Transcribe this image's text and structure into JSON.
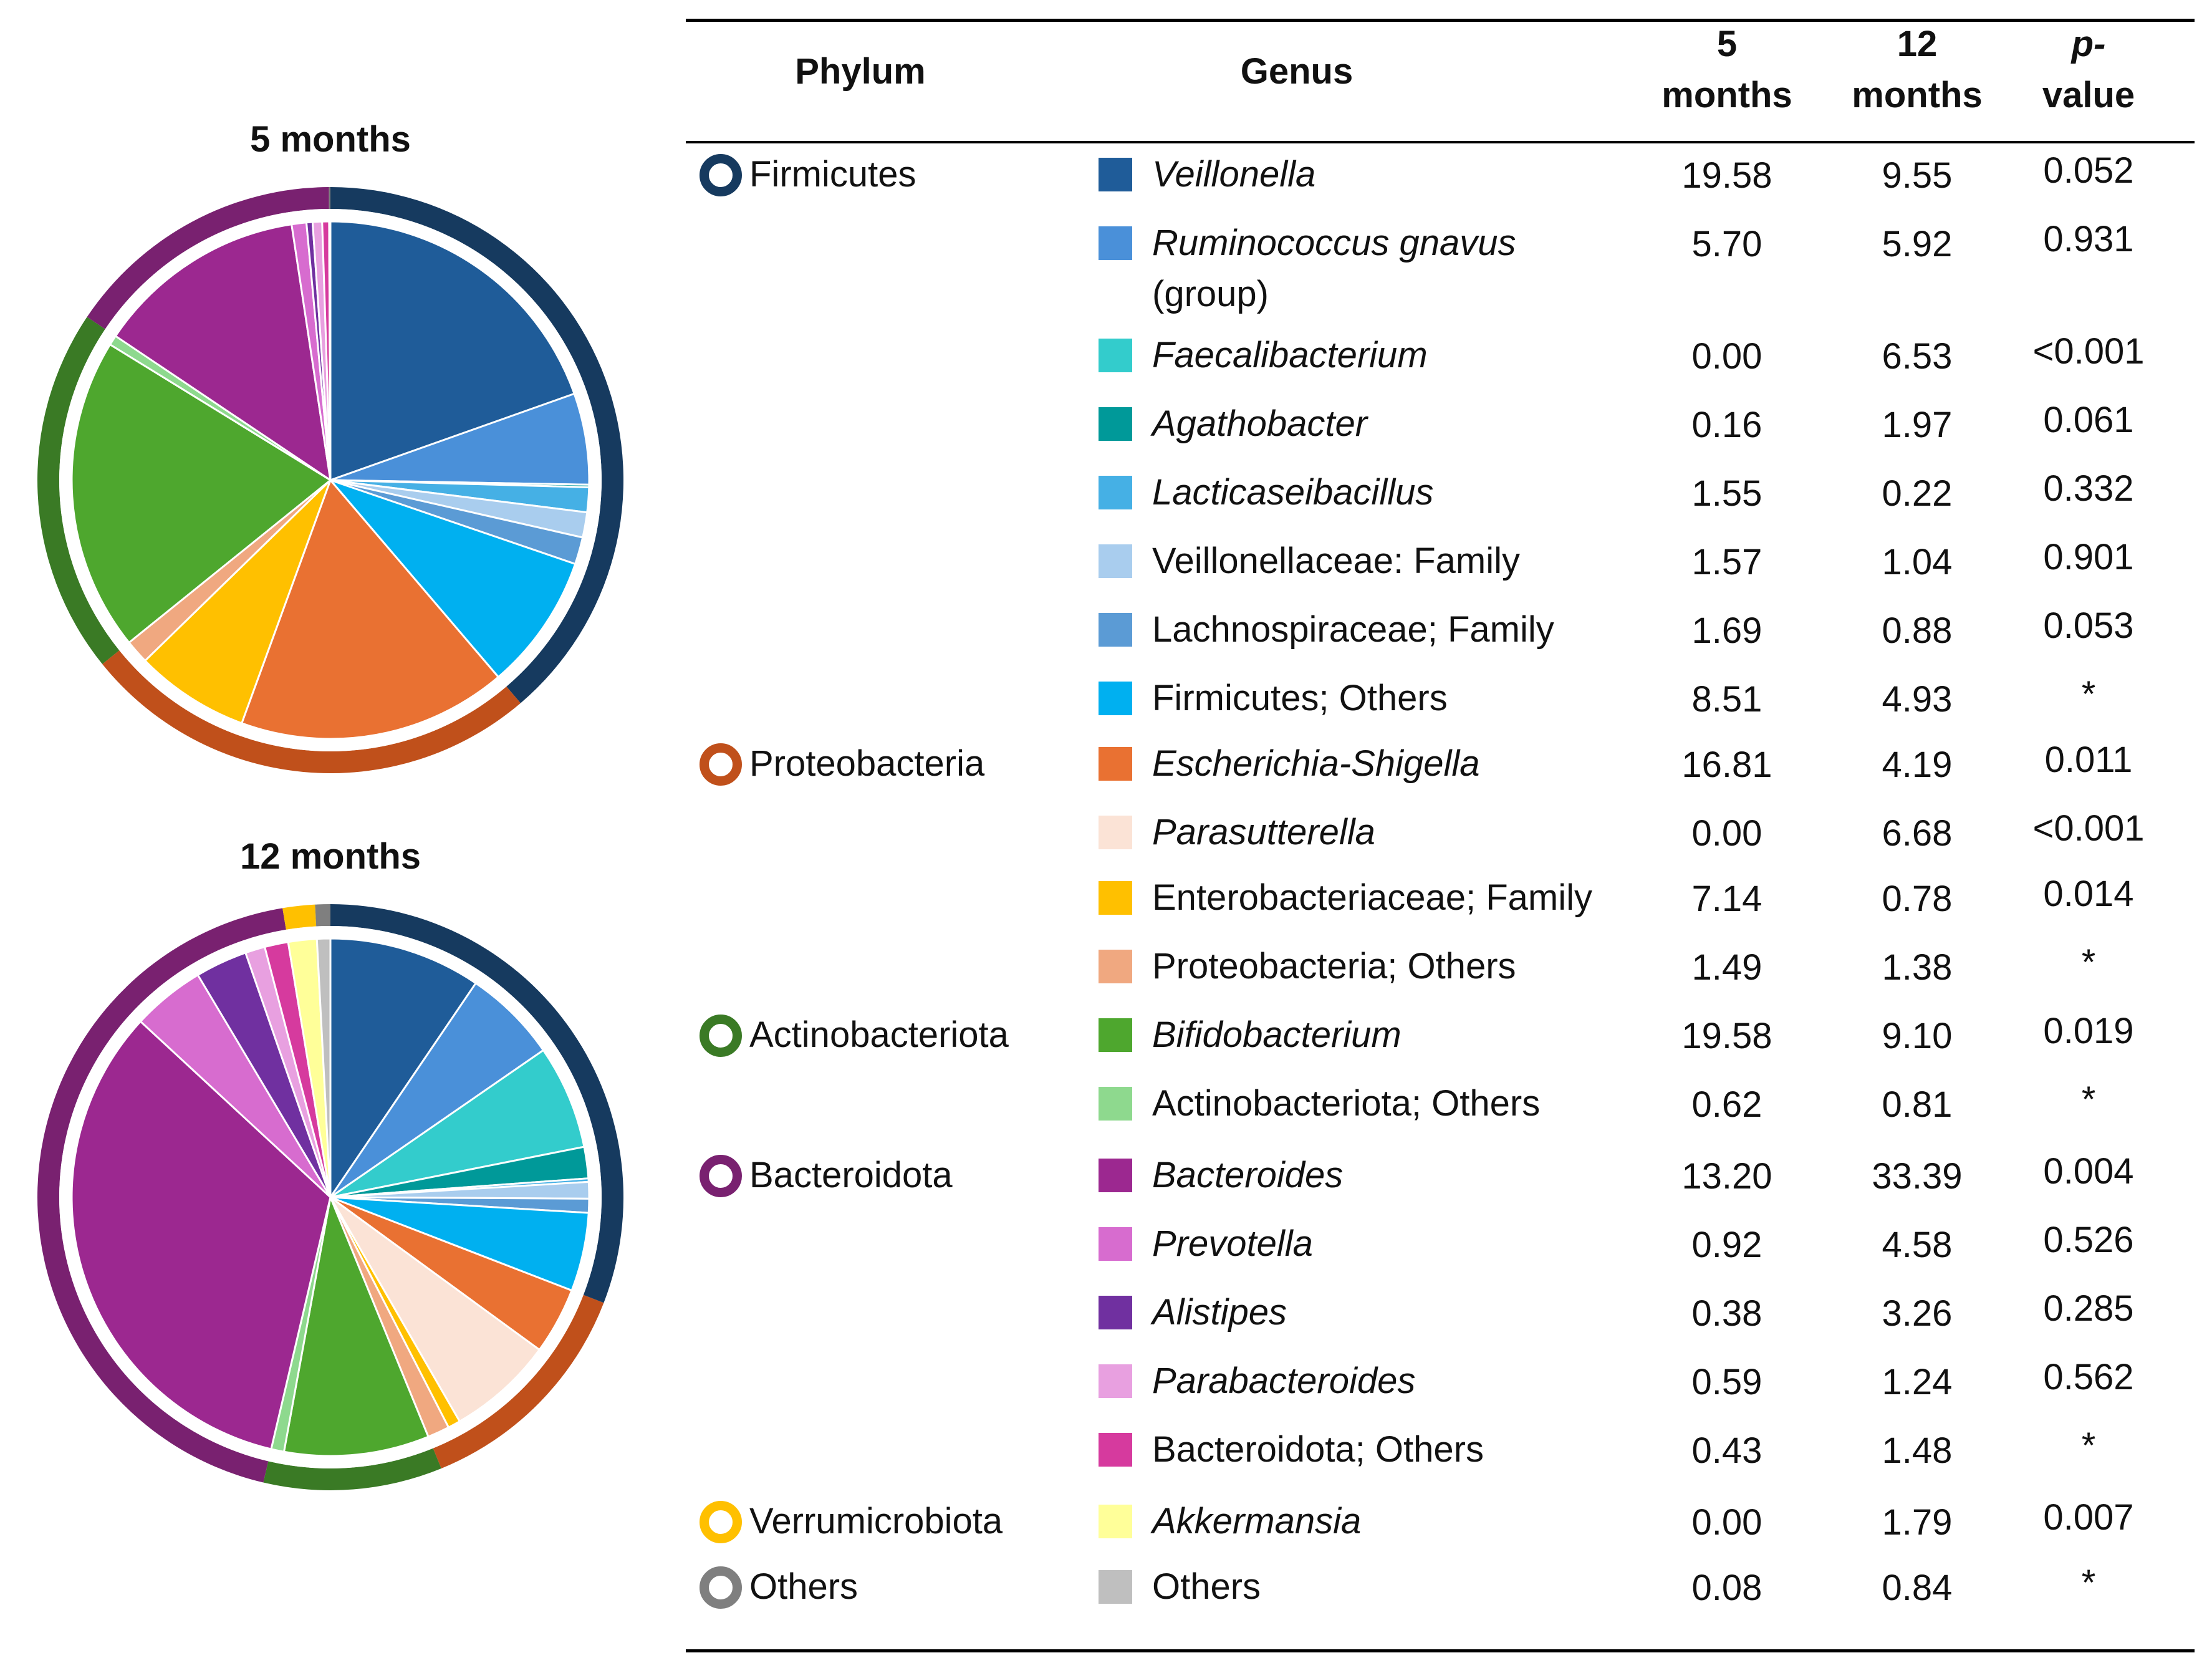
{
  "colors": {
    "Firmicutes": "#163a5f",
    "Proteobacteria": "#c0501b",
    "Actinobacteriota": "#3a7a25",
    "Bacteroidota": "#792170",
    "Verrumicrobiota": "#ffc000",
    "Others": "#7f7f7f"
  },
  "headers": {
    "phylum": "Phylum",
    "genus": "Genus",
    "m5_line1": "5",
    "m5_line2": "months",
    "m12_line1": "12",
    "m12_line2": "months",
    "p_line1": "p-",
    "p_line2": "value"
  },
  "pies": {
    "title_5": "5 months",
    "title_12": "12 months"
  },
  "phyla": [
    {
      "name": "Firmicutes",
      "color": "#163a5f"
    },
    {
      "name": "Proteobacteria",
      "color": "#c0501b"
    },
    {
      "name": "Actinobacteriota",
      "color": "#3a7a25"
    },
    {
      "name": "Bacteroidota",
      "color": "#792170"
    },
    {
      "name": "Verrumicrobiota",
      "color": "#ffc000"
    },
    {
      "name": "Others",
      "color": "#7f7f7f"
    }
  ],
  "rows": [
    {
      "phylum": "Firmicutes",
      "genus": "Veillonella",
      "italic": true,
      "color": "#1f5c99",
      "m5": "19.58",
      "m12": "9.55",
      "p": "0.052"
    },
    {
      "phylum": "Firmicutes",
      "genus": "Ruminococcus gnavus",
      "genus_extra": "(group)",
      "italic": true,
      "color": "#4a90d9",
      "m5": "5.70",
      "m12": "5.92",
      "p": "0.931"
    },
    {
      "phylum": "Firmicutes",
      "genus": "Faecalibacterium",
      "italic": true,
      "color": "#33cccc",
      "m5": "0.00",
      "m12": "6.53",
      "p": "<0.001"
    },
    {
      "phylum": "Firmicutes",
      "genus": "Agathobacter",
      "italic": true,
      "color": "#009999",
      "m5": "0.16",
      "m12": "1.97",
      "p": "0.061"
    },
    {
      "phylum": "Firmicutes",
      "genus": "Lacticaseibacillus",
      "italic": true,
      "color": "#45b0e5",
      "m5": "1.55",
      "m12": "0.22",
      "p": "0.332"
    },
    {
      "phylum": "Firmicutes",
      "genus": "Veillonellaceae: Family",
      "italic": false,
      "color": "#a9cdee",
      "m5": "1.57",
      "m12": "1.04",
      "p": "0.901"
    },
    {
      "phylum": "Firmicutes",
      "genus": "Lachnospiraceae; Family",
      "italic": false,
      "color": "#5b9bd5",
      "m5": "1.69",
      "m12": "0.88",
      "p": "0.053"
    },
    {
      "phylum": "Firmicutes",
      "genus": "Firmicutes; Others",
      "italic": false,
      "color": "#00b0f0",
      "m5": "8.51",
      "m12": "4.93",
      "p": "*"
    },
    {
      "phylum": "Proteobacteria",
      "genus": "Escherichia-Shigella",
      "italic": true,
      "color": "#e97132",
      "m5": "16.81",
      "m12": "4.19",
      "p": "0.011"
    },
    {
      "phylum": "Proteobacteria",
      "genus": "Parasutterella",
      "italic": true,
      "color": "#fbe3d6",
      "m5": "0.00",
      "m12": "6.68",
      "p": "<0.001"
    },
    {
      "phylum": "Proteobacteria",
      "genus": "Enterobacteriaceae; Family",
      "italic": false,
      "color": "#ffc000",
      "m5": "7.14",
      "m12": "0.78",
      "p": "0.014"
    },
    {
      "phylum": "Proteobacteria",
      "genus": "Proteobacteria; Others",
      "italic": false,
      "color": "#f0a880",
      "m5": "1.49",
      "m12": "1.38",
      "p": "*"
    },
    {
      "phylum": "Actinobacteriota",
      "genus": "Bifidobacterium",
      "italic": true,
      "color": "#4ea72e",
      "m5": "19.58",
      "m12": "9.10",
      "p": "0.019"
    },
    {
      "phylum": "Actinobacteriota",
      "genus": "Actinobacteriota; Others",
      "italic": false,
      "color": "#8ed98e",
      "m5": "0.62",
      "m12": "0.81",
      "p": "*"
    },
    {
      "phylum": "Bacteroidota",
      "genus": "Bacteroides",
      "italic": true,
      "color": "#9c2890",
      "m5": "13.20",
      "m12": "33.39",
      "p": "0.004"
    },
    {
      "phylum": "Bacteroidota",
      "genus": "Prevotella",
      "italic": true,
      "color": "#d76ccf",
      "m5": "0.92",
      "m12": "4.58",
      "p": "0.526"
    },
    {
      "phylum": "Bacteroidota",
      "genus": "Alistipes",
      "italic": true,
      "color": "#7030a0",
      "m5": "0.38",
      "m12": "3.26",
      "p": "0.285"
    },
    {
      "phylum": "Bacteroidota",
      "genus": "Parabacteroides",
      "italic": true,
      "color": "#e8a0e0",
      "m5": "0.59",
      "m12": "1.24",
      "p": "0.562"
    },
    {
      "phylum": "Bacteroidota",
      "genus": "Bacteroidota; Others",
      "italic": false,
      "color": "#d63a9e",
      "m5": "0.43",
      "m12": "1.48",
      "p": "*"
    },
    {
      "phylum": "Verrumicrobiota",
      "genus": "Akkermansia",
      "italic": true,
      "color": "#ffff99",
      "m5": "0.00",
      "m12": "1.79",
      "p": "0.007"
    },
    {
      "phylum": "Others",
      "genus": "Others",
      "italic": false,
      "color": "#bfbfbf",
      "m5": "0.08",
      "m12": "0.84",
      "p": "*"
    }
  ],
  "chart_data": [
    {
      "type": "pie",
      "title": "5 months",
      "categories": [
        "Veillonella",
        "Ruminococcus gnavus (group)",
        "Faecalibacterium",
        "Agathobacter",
        "Lacticaseibacillus",
        "Veillonellaceae: Family",
        "Lachnospiraceae; Family",
        "Firmicutes; Others",
        "Escherichia-Shigella",
        "Parasutterella",
        "Enterobacteriaceae; Family",
        "Proteobacteria; Others",
        "Bifidobacterium",
        "Actinobacteriota; Others",
        "Bacteroides",
        "Prevotella",
        "Alistipes",
        "Parabacteroides",
        "Bacteroidota; Others",
        "Akkermansia",
        "Others"
      ],
      "values": [
        19.58,
        5.7,
        0.0,
        0.16,
        1.55,
        1.57,
        1.69,
        8.51,
        16.81,
        0.0,
        7.14,
        1.49,
        19.58,
        0.62,
        13.2,
        0.92,
        0.38,
        0.59,
        0.43,
        0.0,
        0.08
      ],
      "outer_ring": {
        "categories": [
          "Firmicutes",
          "Proteobacteria",
          "Actinobacteriota",
          "Bacteroidota",
          "Verrumicrobiota",
          "Others"
        ],
        "values": [
          38.76,
          25.44,
          20.2,
          15.52,
          0.0,
          0.08
        ]
      }
    },
    {
      "type": "pie",
      "title": "12 months",
      "categories": [
        "Veillonella",
        "Ruminococcus gnavus (group)",
        "Faecalibacterium",
        "Agathobacter",
        "Lacticaseibacillus",
        "Veillonellaceae: Family",
        "Lachnospiraceae; Family",
        "Firmicutes; Others",
        "Escherichia-Shigella",
        "Parasutterella",
        "Enterobacteriaceae; Family",
        "Proteobacteria; Others",
        "Bifidobacterium",
        "Actinobacteriota; Others",
        "Bacteroides",
        "Prevotella",
        "Alistipes",
        "Parabacteroides",
        "Bacteroidota; Others",
        "Akkermansia",
        "Others"
      ],
      "values": [
        9.55,
        5.92,
        6.53,
        1.97,
        0.22,
        1.04,
        0.88,
        4.93,
        4.19,
        6.68,
        0.78,
        1.38,
        9.1,
        0.81,
        33.39,
        4.58,
        3.26,
        1.24,
        1.48,
        1.79,
        0.84
      ],
      "outer_ring": {
        "categories": [
          "Firmicutes",
          "Proteobacteria",
          "Actinobacteriota",
          "Bacteroidota",
          "Verrumicrobiota",
          "Others"
        ],
        "values": [
          31.04,
          13.03,
          9.91,
          43.95,
          1.79,
          0.84
        ]
      }
    }
  ]
}
